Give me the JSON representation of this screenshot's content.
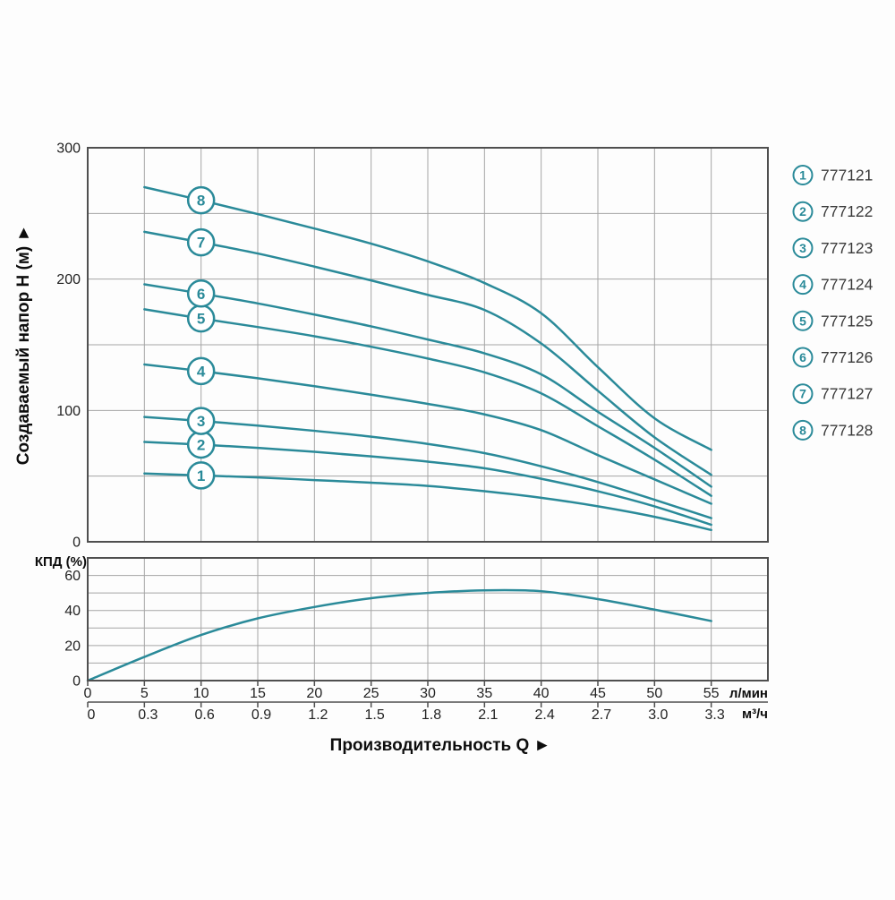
{
  "colors": {
    "curve": "#2a8a99",
    "grid": "#a5a5a5",
    "border": "#4f4f4f",
    "tick_text": "#222222",
    "title_text": "#0d0d0d",
    "legend_text": "#3a3a3a",
    "marker_fill": "#ffffff"
  },
  "chart_data": [
    {
      "type": "line",
      "name": "head-vs-flow",
      "ylabel": "Создаваемый напор Н (м)",
      "ylim": [
        0,
        300
      ],
      "xlim_lmin": [
        0,
        60
      ],
      "y_ticks": [
        0,
        100,
        200,
        300
      ],
      "grid_step_y": 50,
      "grid_step_x": 5,
      "marker_x": 10,
      "x": [
        5,
        10,
        15,
        20,
        25,
        30,
        35,
        40,
        45,
        50,
        55
      ],
      "series": [
        {
          "num": "1",
          "name": "777121",
          "values": [
            52,
            50.5,
            49,
            47,
            45,
            42.5,
            38.5,
            33.5,
            27,
            19,
            9
          ]
        },
        {
          "num": "2",
          "name": "777122",
          "values": [
            76,
            74,
            71.5,
            68.5,
            65,
            61,
            56,
            48,
            38.5,
            27,
            13
          ]
        },
        {
          "num": "3",
          "name": "777123",
          "values": [
            95,
            92,
            88.5,
            84.5,
            80,
            74.5,
            67.5,
            57.5,
            45.5,
            32,
            18
          ]
        },
        {
          "num": "4",
          "name": "777124",
          "values": [
            135,
            130,
            124.5,
            118.5,
            112,
            105,
            97,
            85,
            66,
            47.5,
            29
          ]
        },
        {
          "num": "5",
          "name": "777125",
          "values": [
            177,
            170,
            163.5,
            156.5,
            148.5,
            139.5,
            129,
            113,
            88,
            62.5,
            35
          ]
        },
        {
          "num": "6",
          "name": "777126",
          "values": [
            196,
            189,
            181.5,
            173,
            164,
            154,
            143.5,
            127.5,
            99,
            71.5,
            42
          ]
        },
        {
          "num": "7",
          "name": "777127",
          "values": [
            236,
            228,
            219.5,
            209.5,
            199,
            188,
            176.5,
            151,
            115,
            79.5,
            51
          ]
        },
        {
          "num": "8",
          "name": "777128",
          "values": [
            270,
            260,
            249.5,
            238.5,
            227,
            213.5,
            197,
            174,
            133,
            94,
            70
          ]
        }
      ]
    },
    {
      "type": "line",
      "name": "efficiency",
      "ylabel": "КПД (%)",
      "ylim": [
        0,
        70
      ],
      "y_ticks": [
        0,
        20,
        40,
        60
      ],
      "grid_step_y": 10,
      "x": [
        0,
        5,
        10,
        15,
        20,
        25,
        30,
        35,
        40,
        45,
        50,
        55
      ],
      "series": [
        {
          "name": "КПД",
          "values": [
            0,
            13.5,
            26,
            35.5,
            42,
            47,
            50,
            51.5,
            51,
            46.5,
            40.5,
            34
          ]
        }
      ]
    }
  ],
  "x_axis": {
    "title": "Производительность Q  ►",
    "lmin": {
      "unit": "л/мин",
      "ticks": [
        "0",
        "5",
        "10",
        "15",
        "20",
        "25",
        "30",
        "35",
        "40",
        "45",
        "50",
        "55"
      ]
    },
    "m3h": {
      "unit": "м³/ч",
      "ticks": [
        "0",
        "0.3",
        "0.6",
        "0.9",
        "1.2",
        "1.5",
        "1.8",
        "2.1",
        "2.4",
        "2.7",
        "3.0",
        "3.3"
      ]
    }
  },
  "labels": {
    "y_axis_title": "Создаваемый напор Н (м) ►",
    "kpd": "КПД (%)"
  },
  "legend": {
    "items": [
      {
        "num": "1",
        "label": "777121"
      },
      {
        "num": "2",
        "label": "777122"
      },
      {
        "num": "3",
        "label": "777123"
      },
      {
        "num": "4",
        "label": "777124"
      },
      {
        "num": "5",
        "label": "777125"
      },
      {
        "num": "6",
        "label": "777126"
      },
      {
        "num": "7",
        "label": "777127"
      },
      {
        "num": "8",
        "label": "777128"
      }
    ]
  }
}
